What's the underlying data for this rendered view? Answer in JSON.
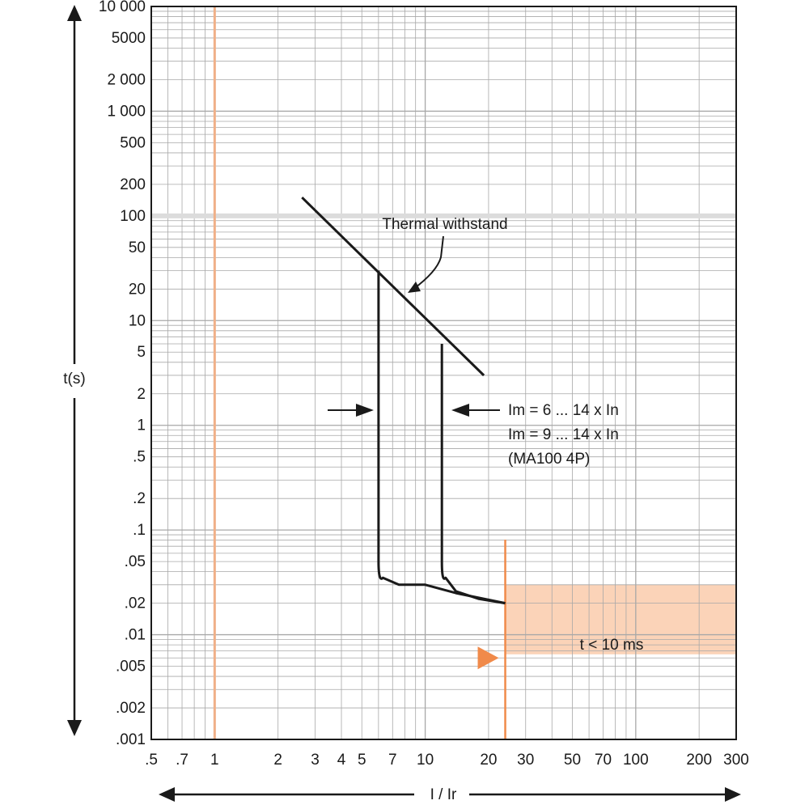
{
  "chart_data": {
    "type": "line",
    "title": "",
    "xlabel": "I / Ir",
    "ylabel": "t(s)",
    "x_scale": "log",
    "y_scale": "log",
    "xlim": [
      0.5,
      300
    ],
    "ylim": [
      0.001,
      10000
    ],
    "grid": true,
    "x_ticks": [
      0.5,
      0.7,
      1,
      2,
      3,
      4,
      5,
      7,
      10,
      20,
      30,
      50,
      70,
      100,
      200,
      300
    ],
    "x_tick_labels": [
      ".5",
      ".7",
      "1",
      "2",
      "3",
      "4",
      "5",
      "7",
      "10",
      "20",
      "30",
      "50",
      "70",
      "100",
      "200",
      "300"
    ],
    "y_ticks": [
      10000,
      5000,
      2000,
      1000,
      500,
      200,
      100,
      50,
      20,
      10,
      5,
      2,
      1,
      0.5,
      0.2,
      0.1,
      0.05,
      0.02,
      0.01,
      0.005,
      0.002,
      0.001
    ],
    "y_tick_labels": [
      "10 000",
      "5000",
      "2 000",
      "1 000",
      "500",
      "200",
      "100",
      "50",
      "20",
      "10",
      "5",
      "2",
      "1",
      ".5",
      ".2",
      ".1",
      ".05",
      ".02",
      ".01",
      ".005",
      ".002",
      ".001"
    ],
    "series": [
      {
        "name": "Thermal withstand",
        "x": [
          2.6,
          19
        ],
        "y": [
          150,
          3
        ]
      },
      {
        "name": "",
        "x": [
          6,
          6,
          6,
          6.3,
          7.5,
          10,
          14,
          24
        ],
        "y": [
          30,
          1,
          0.05,
          0.035,
          0.03,
          0.03,
          0.025,
          0.02
        ]
      },
      {
        "name": "",
        "x": [
          12,
          12,
          12,
          12.5,
          14,
          18,
          24
        ],
        "y": [
          6,
          1,
          0.05,
          0.035,
          0.026,
          0.022,
          0.02
        ]
      }
    ],
    "reference_line_x": 1,
    "shaded_region": {
      "x": [
        24,
        300
      ],
      "y": [
        0.0065,
        0.03
      ],
      "label": "t <  10 ms"
    },
    "marker_line_x": 24,
    "annotations": {
      "thermal": "Thermal withstand",
      "im1": "Im = 6 ... 14 x In",
      "im2": "Im = 9 ... 14 x In",
      "im3": "(MA100 4P)"
    },
    "colors": {
      "curve": "#1a1a1a",
      "grid": "#a8a8a8",
      "reference_line": "#f0b088",
      "shade": "#fbd3b8",
      "marker": "#f08a4a"
    }
  }
}
